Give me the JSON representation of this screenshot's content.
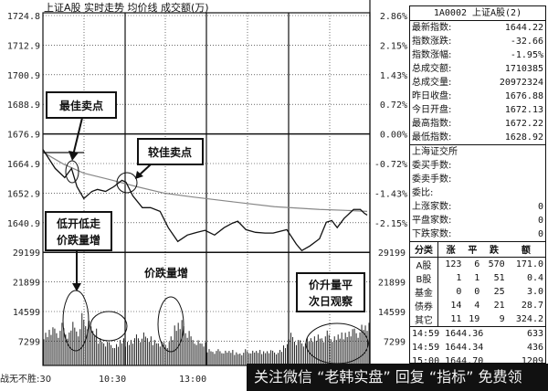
{
  "chart_data": {
    "type": "line",
    "title": "上证A股 实时走势 均价线 成交额(万)",
    "left_ticks": [
      "1724.8",
      "1712.9",
      "1700.9",
      "1688.9",
      "1676.9",
      "1664.9",
      "1652.9",
      "1640.9"
    ],
    "right_ticks": [
      "2.86%",
      "2.15%",
      "1.43%",
      "0.72%",
      "0.00%",
      "-0.72%",
      "-1.43%",
      "-2.15%"
    ],
    "volume_ticks": [
      "29199",
      "21899",
      "14599",
      "7299"
    ],
    "ylim": [
      1629,
      1724.8
    ],
    "prev_close": 1676.9,
    "volume_max": 29199,
    "x_tick_labels": [
      "战无不胜:30",
      "10:30",
      "13:00"
    ],
    "series": [
      {
        "minutes": [
          0,
          9,
          16,
          21,
          25,
          30,
          36,
          40,
          46,
          52,
          58,
          61,
          66,
          73,
          79,
          86,
          92,
          99,
          106,
          113,
          119,
          126,
          133,
          139,
          143,
          149,
          156,
          163,
          169,
          179,
          186,
          190,
          196,
          203,
          208,
          212,
          216,
          221,
          228,
          233,
          236,
          238
        ],
        "values": [
          1670.5,
          1662.8,
          1659.1,
          1662.8,
          1655.4,
          1650.6,
          1653.5,
          1654.3,
          1653.5,
          1655.4,
          1658.0,
          1657.2,
          1651.7,
          1646.9,
          1646.9,
          1645.4,
          1638.8,
          1633.2,
          1635.8,
          1636.9,
          1637.7,
          1635.8,
          1638.8,
          1640.6,
          1641.4,
          1638.0,
          1636.9,
          1636.6,
          1636.6,
          1638.0,
          1632.1,
          1629.5,
          1631.4,
          1634.3,
          1641.0,
          1641.7,
          1638.8,
          1642.5,
          1646.2,
          1646.2,
          1644.6,
          1643.9
        ]
      },
      {
        "minutes": [
          0,
          15,
          30,
          49,
          69,
          89,
          109,
          136,
          170,
          203,
          223,
          238
        ],
        "values": [
          1669.4,
          1664.6,
          1660.9,
          1658.3,
          1655.4,
          1652.8,
          1651.3,
          1649.5,
          1647.3,
          1646.2,
          1645.8,
          1645.4
        ]
      }
    ],
    "volume": [
      9000,
      10500,
      9500,
      11000,
      8500,
      12000,
      10000,
      13500,
      11500,
      9500,
      7500,
      6500,
      6000,
      5500,
      7000,
      6500,
      7500,
      8000,
      8500,
      7500,
      7000,
      6500,
      6000,
      7500,
      11000,
      12500,
      9500,
      7500,
      6500,
      6000,
      4500,
      4000,
      4200,
      3800,
      4000,
      3600,
      3500,
      4200,
      3800,
      4000,
      3900,
      4200,
      3800,
      4000,
      5500,
      9000,
      7000,
      6500,
      7000,
      7500,
      8500,
      8000,
      9000,
      7500,
      8500,
      9000,
      10000,
      9500,
      10500,
      11000
    ],
    "annotations": [
      "最佳卖点",
      "较佳卖点",
      "低开低走",
      "价跌量增",
      "价跌量增",
      "价升量平",
      "次日观察"
    ]
  },
  "panel": {
    "header": "1A0002 上证A股(2)",
    "stats": [
      {
        "label": "最新指数:",
        "value": "1644.22"
      },
      {
        "label": "指数涨跌:",
        "value": "-32.66"
      },
      {
        "label": "指数涨幅:",
        "value": "-1.95%"
      },
      {
        "label": "总成交额:",
        "value": "1710385"
      },
      {
        "label": "总成交量:",
        "value": "20972324"
      },
      {
        "label": "昨日收盘:",
        "value": "1676.88"
      },
      {
        "label": "今日开盘:",
        "value": "1672.13"
      },
      {
        "label": "最高指数:",
        "value": "1672.22"
      },
      {
        "label": "最低指数:",
        "value": "1628.92"
      }
    ],
    "exchange": "上海证交所",
    "orders": [
      {
        "label": "委买手数:",
        "value": ""
      },
      {
        "label": "委卖手数:",
        "value": ""
      },
      {
        "label": "委比:",
        "value": ""
      },
      {
        "label": "上涨家数:",
        "value": "0"
      },
      {
        "label": "平盘家数:",
        "value": "0"
      },
      {
        "label": "下跌家数:",
        "value": "0"
      }
    ],
    "table_headers": [
      "分类",
      "涨",
      "平",
      "跌",
      "额"
    ],
    "table_rows": [
      [
        "A股",
        "123",
        "6",
        "570",
        "171.0"
      ],
      [
        "B股",
        "1",
        "1",
        "51",
        "0.4"
      ],
      [
        "基金",
        "0",
        "0",
        "25",
        "3.0"
      ],
      [
        "债券",
        "14",
        "4",
        "21",
        "28.7"
      ],
      [
        "其它",
        "11",
        "19",
        "9",
        "324.2"
      ]
    ],
    "ticks": [
      {
        "time": "14:59",
        "price": "1644.36",
        "vol": "633"
      },
      {
        "time": "14:59",
        "price": "1644.34",
        "vol": "436"
      },
      {
        "time": "15:00",
        "price": "1644.70",
        "vol": "1209"
      }
    ]
  },
  "banner": "关注微信 “老韩实盘” 回复 “指标” 免费领"
}
